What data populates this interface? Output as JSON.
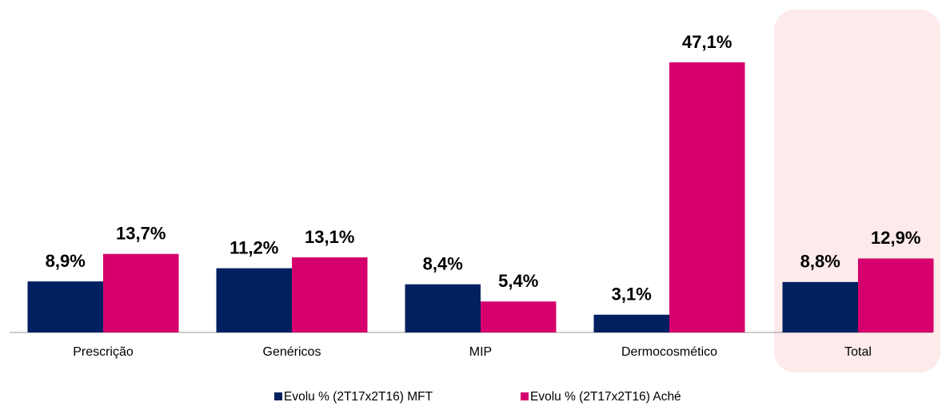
{
  "chart_data": {
    "type": "bar",
    "categories": [
      "Prescrição",
      "Genéricos",
      "MIP",
      "Dermocosmético",
      "Total"
    ],
    "series": [
      {
        "name": "Evolu % (2T17x2T16) MFT",
        "color": "#002060",
        "values": [
          8.9,
          11.2,
          8.4,
          3.1,
          8.8
        ],
        "value_labels": [
          "8,9%",
          "11,2%",
          "8,4%",
          "3,1%",
          "8,8%"
        ]
      },
      {
        "name": "Evolu % (2T17x2T16) Aché",
        "color": "#d5006d",
        "values": [
          13.7,
          13.1,
          5.4,
          47.1,
          12.9
        ],
        "value_labels": [
          "13,7%",
          "13,1%",
          "5,4%",
          "47,1%",
          "12,9%"
        ]
      }
    ]
  }
}
